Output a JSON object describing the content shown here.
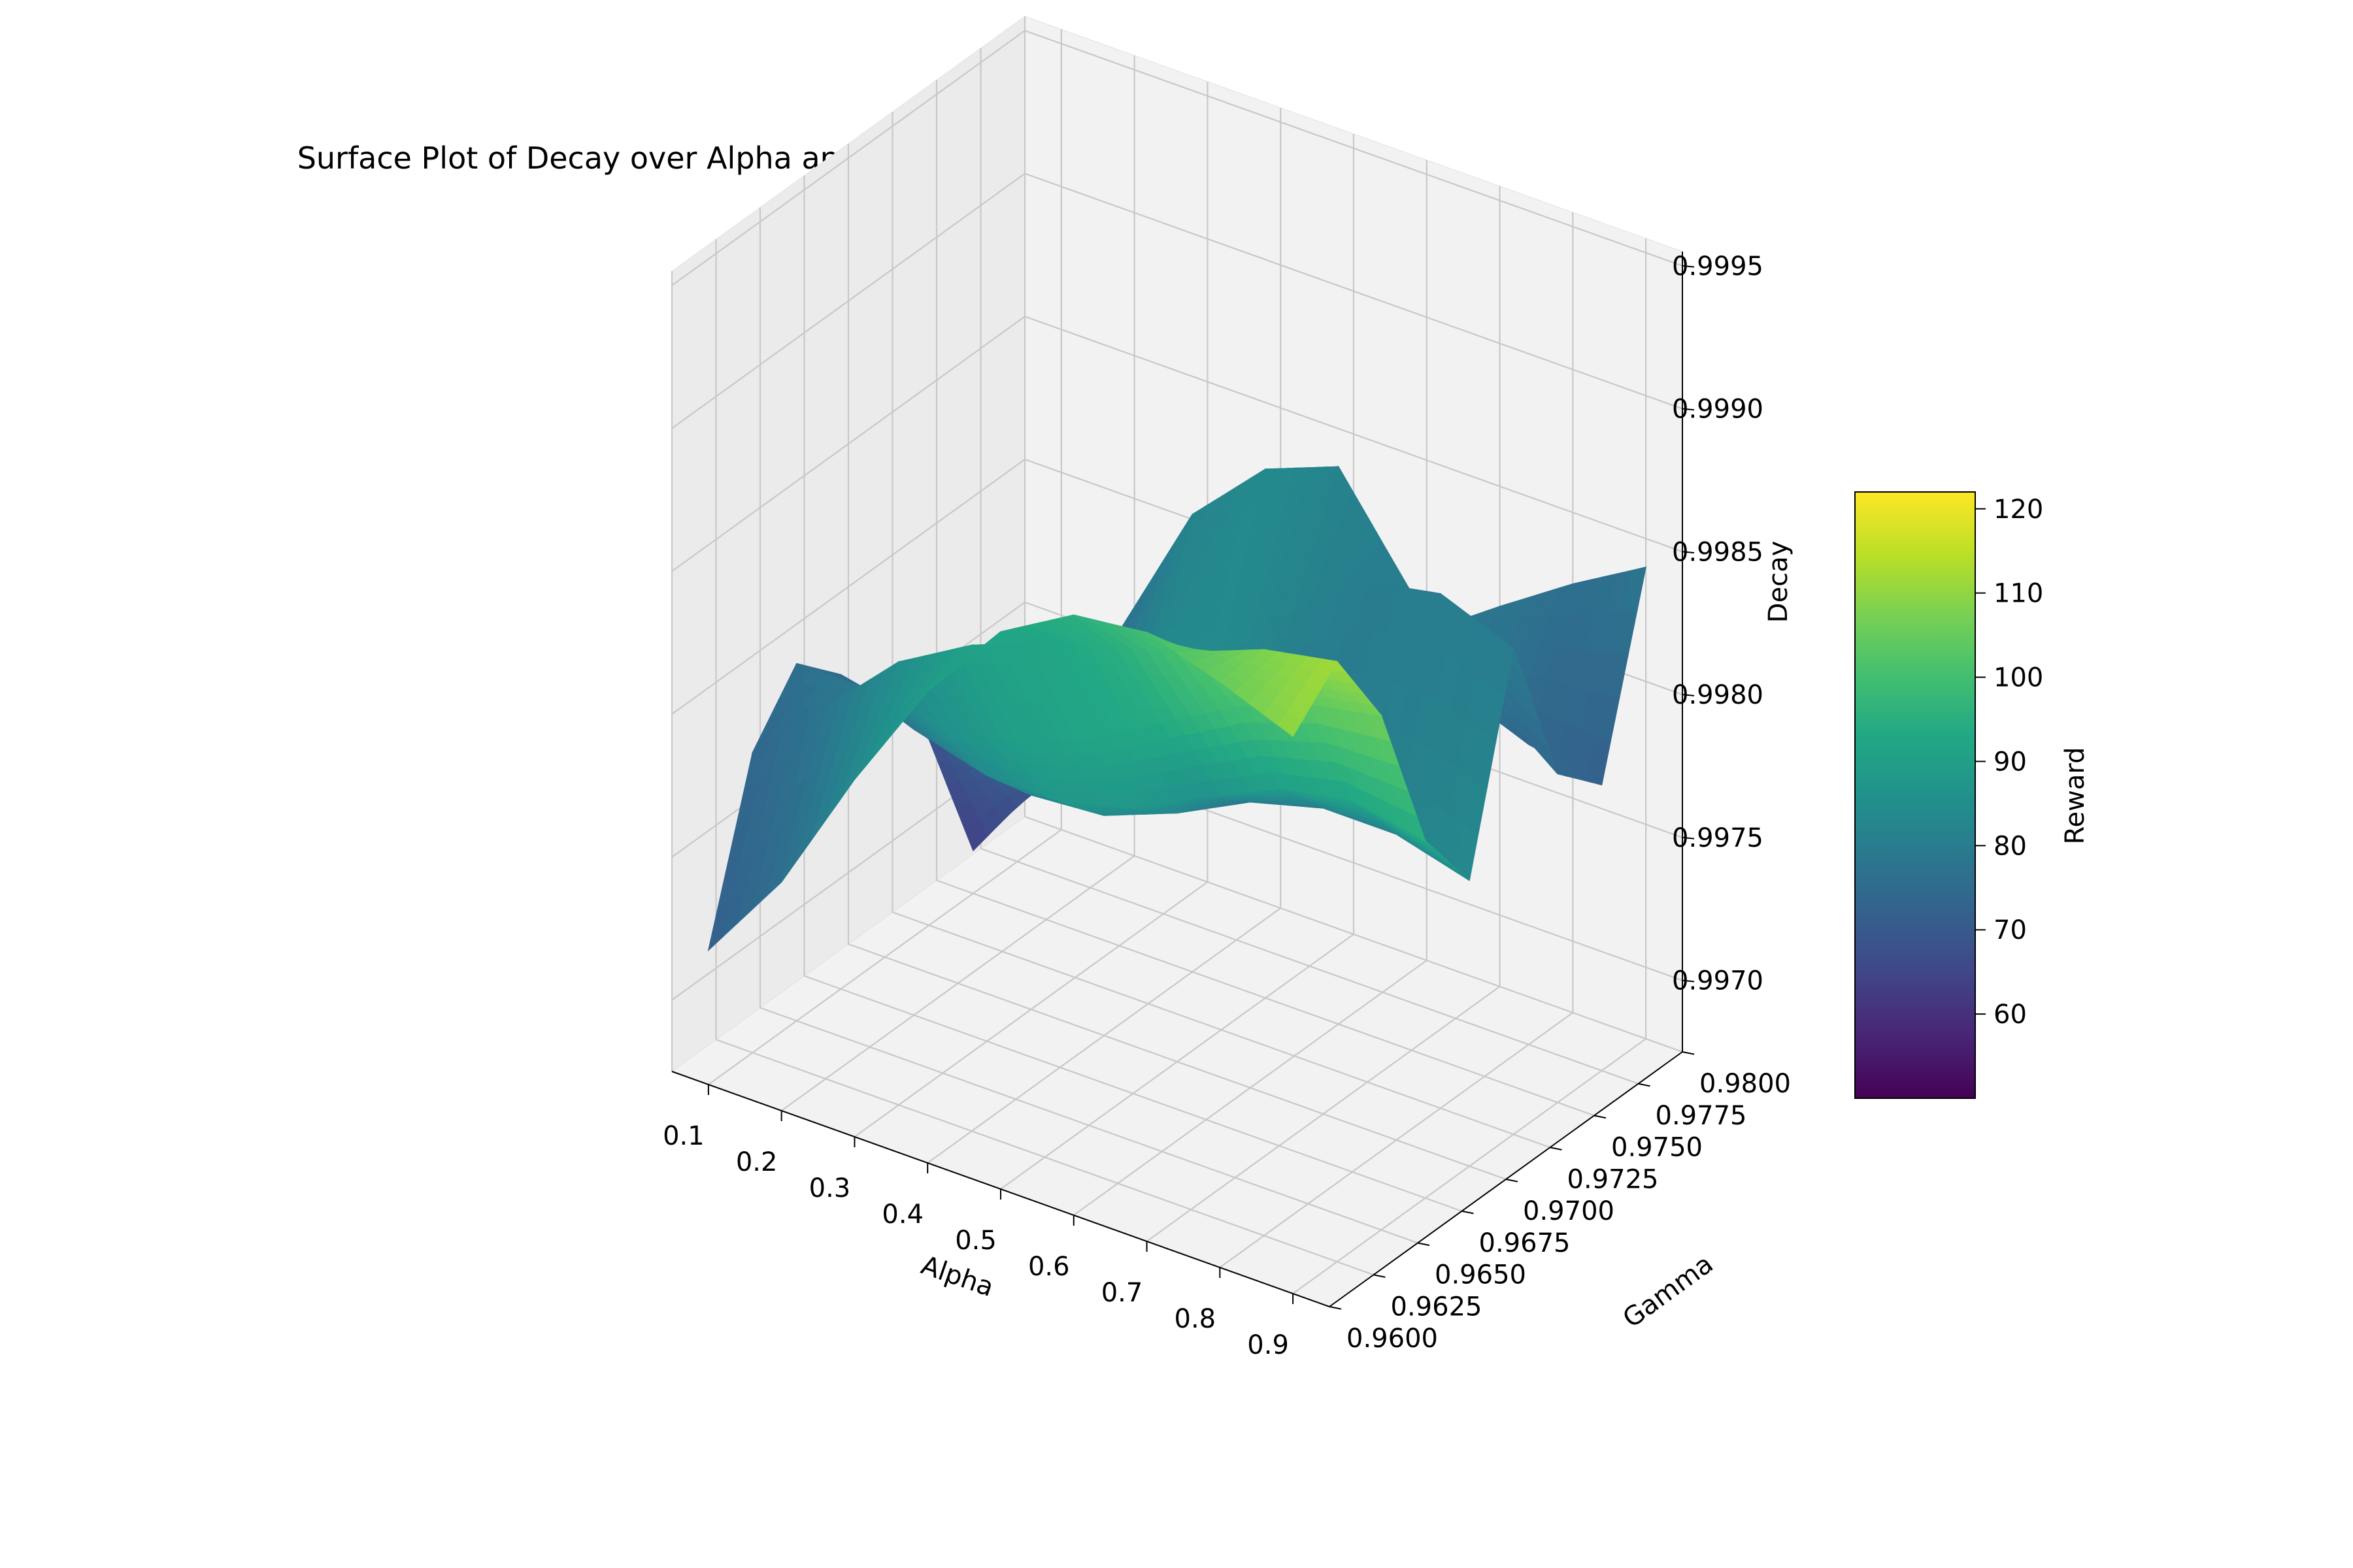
{
  "chart_data": {
    "type": "surface",
    "title": "Surface Plot of Decay over Alpha and Gamma with Reward Coloring",
    "xlabel": "Alpha",
    "ylabel": "Gamma",
    "zlabel": "Decay",
    "colorbar_label": "Reward",
    "colormap": "viridis",
    "xlim": [
      0.05,
      0.95
    ],
    "ylim": [
      0.96,
      0.98
    ],
    "zlim": [
      0.99675,
      0.99955
    ],
    "clim": [
      50,
      122
    ],
    "x_ticks": [
      "0.1",
      "0.2",
      "0.3",
      "0.4",
      "0.5",
      "0.6",
      "0.7",
      "0.8",
      "0.9"
    ],
    "y_ticks": [
      "0.9600",
      "0.9625",
      "0.9650",
      "0.9675",
      "0.9700",
      "0.9725",
      "0.9750",
      "0.9775",
      "0.9800"
    ],
    "z_ticks": [
      "0.9970",
      "0.9975",
      "0.9980",
      "0.9985",
      "0.9990",
      "0.9995"
    ],
    "colorbar_ticks": [
      "60",
      "70",
      "80",
      "90",
      "100",
      "110",
      "120"
    ],
    "grid": true,
    "x": [
      0.1,
      0.2,
      0.3,
      0.4,
      0.5,
      0.6,
      0.7,
      0.8,
      0.9
    ],
    "y": [
      0.96,
      0.9625,
      0.965,
      0.9675,
      0.97,
      0.9725,
      0.975,
      0.9775,
      0.98
    ],
    "z": [
      [
        0.99722,
        0.99755,
        0.998,
        0.9984,
        0.9987,
        0.99885,
        0.99888,
        0.9988,
        0.9987
      ],
      [
        0.9978,
        0.99805,
        0.9983,
        0.99845,
        0.99855,
        0.99862,
        0.9987,
        0.9988,
        0.99885
      ],
      [
        0.998,
        0.998,
        0.99795,
        0.998,
        0.9981,
        0.99825,
        0.9984,
        0.9985,
        0.99855
      ],
      [
        0.99785,
        0.99775,
        0.99768,
        0.99768,
        0.99775,
        0.99788,
        0.998,
        0.99805,
        0.998
      ],
      [
        0.99765,
        0.99755,
        0.9975,
        0.99752,
        0.99762,
        0.99775,
        0.99782,
        0.99782,
        0.99775
      ],
      [
        0.9974,
        0.99738,
        0.99752,
        0.99778,
        0.99805,
        0.9983,
        0.9985,
        0.99855,
        0.99845
      ],
      [
        0.9969,
        0.99725,
        0.99785,
        0.99835,
        0.9986,
        0.9987,
        0.99835,
        0.9981,
        0.9979
      ],
      [
        0.997,
        0.9972,
        0.9976,
        0.998,
        0.9982,
        0.9981,
        0.9979,
        0.9978,
        0.99775
      ],
      [
        0.99735,
        0.99738,
        0.99748,
        0.99762,
        0.99775,
        0.9979,
        0.99808,
        0.99825,
        0.9984
      ]
    ],
    "reward": [
      [
        72,
        76,
        84,
        90,
        92,
        95,
        100,
        105,
        110
      ],
      [
        74,
        78,
        85,
        91,
        92,
        95,
        102,
        108,
        112
      ],
      [
        76,
        80,
        86,
        90,
        92,
        94,
        100,
        104,
        106
      ],
      [
        74,
        78,
        84,
        88,
        88,
        86,
        90,
        92,
        94
      ],
      [
        70,
        76,
        82,
        84,
        82,
        78,
        80,
        82,
        84
      ],
      [
        68,
        74,
        80,
        84,
        84,
        82,
        80,
        80,
        80
      ],
      [
        64,
        70,
        76,
        82,
        84,
        82,
        80,
        76,
        74
      ],
      [
        58,
        62,
        70,
        78,
        84,
        82,
        78,
        74,
        72
      ],
      [
        66,
        70,
        76,
        80,
        82,
        80,
        78,
        76,
        78
      ]
    ]
  }
}
